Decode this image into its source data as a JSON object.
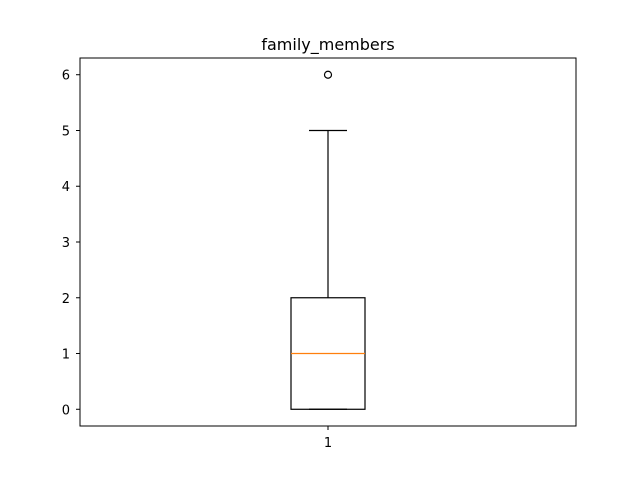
{
  "chart_data": {
    "type": "box",
    "title": "family_members",
    "xlabel": "",
    "ylabel": "",
    "categories": [
      "1"
    ],
    "ylim": [
      -0.3,
      6.3
    ],
    "yticks": [
      0,
      1,
      2,
      3,
      4,
      5,
      6
    ],
    "grid": false,
    "box": {
      "whisker_low": 0,
      "q1": 0,
      "median": 1,
      "q3": 2,
      "whisker_high": 5,
      "outliers": [
        6
      ]
    }
  },
  "colors": {
    "box": "#000000",
    "median": "#ff7f0e",
    "background": "#ffffff"
  }
}
